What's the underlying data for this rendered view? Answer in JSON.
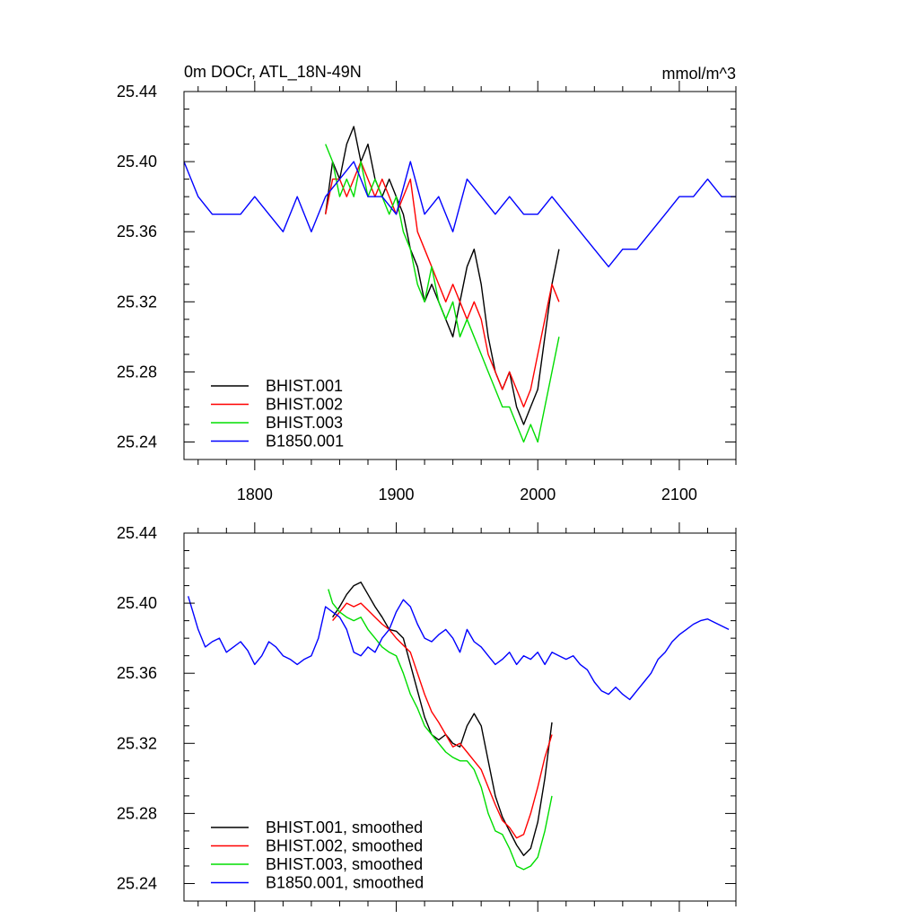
{
  "chart_data": [
    {
      "type": "line",
      "title": "0m DOCr, ATL_18N-49N",
      "units": "mmol/m^3",
      "xlim": [
        1750,
        2140
      ],
      "ylim": [
        25.23,
        25.44
      ],
      "x_ticks": [
        1800,
        1900,
        2000,
        2100
      ],
      "y_ticks": [
        "25.24",
        "25.28",
        "25.32",
        "25.36",
        "25.40",
        "25.44"
      ],
      "legend_position": "bottom-left",
      "grid": false,
      "series": [
        {
          "name": "BHIST.001",
          "color": "#000000",
          "x": [
            1850,
            1855,
            1860,
            1865,
            1870,
            1875,
            1880,
            1885,
            1890,
            1895,
            1900,
            1905,
            1910,
            1915,
            1920,
            1925,
            1930,
            1935,
            1940,
            1945,
            1950,
            1955,
            1960,
            1965,
            1970,
            1975,
            1980,
            1985,
            1990,
            1995,
            2000,
            2005,
            2010,
            2015
          ],
          "y": [
            25.37,
            25.4,
            25.39,
            25.41,
            25.42,
            25.4,
            25.41,
            25.39,
            25.38,
            25.39,
            25.38,
            25.37,
            25.35,
            25.34,
            25.32,
            25.33,
            25.32,
            25.31,
            25.3,
            25.32,
            25.34,
            25.35,
            25.33,
            25.3,
            25.28,
            25.27,
            25.28,
            25.26,
            25.25,
            25.26,
            25.27,
            25.3,
            25.33,
            25.35
          ]
        },
        {
          "name": "BHIST.002",
          "color": "#ff0000",
          "x": [
            1850,
            1855,
            1860,
            1865,
            1870,
            1875,
            1880,
            1885,
            1890,
            1895,
            1900,
            1905,
            1910,
            1915,
            1920,
            1925,
            1930,
            1935,
            1940,
            1945,
            1950,
            1955,
            1960,
            1965,
            1970,
            1975,
            1980,
            1985,
            1990,
            1995,
            2000,
            2005,
            2010,
            2015
          ],
          "y": [
            25.37,
            25.39,
            25.39,
            25.38,
            25.39,
            25.4,
            25.39,
            25.38,
            25.39,
            25.38,
            25.37,
            25.38,
            25.39,
            25.36,
            25.35,
            25.34,
            25.33,
            25.32,
            25.33,
            25.32,
            25.31,
            25.32,
            25.31,
            25.29,
            25.28,
            25.27,
            25.28,
            25.27,
            25.26,
            25.27,
            25.29,
            25.31,
            25.33,
            25.32
          ]
        },
        {
          "name": "BHIST.003",
          "color": "#00dd00",
          "x": [
            1850,
            1855,
            1860,
            1865,
            1870,
            1875,
            1880,
            1885,
            1890,
            1895,
            1900,
            1905,
            1910,
            1915,
            1920,
            1925,
            1930,
            1935,
            1940,
            1945,
            1950,
            1955,
            1960,
            1965,
            1970,
            1975,
            1980,
            1985,
            1990,
            1995,
            2000,
            2005,
            2010,
            2015
          ],
          "y": [
            25.41,
            25.4,
            25.38,
            25.39,
            25.38,
            25.4,
            25.38,
            25.39,
            25.38,
            25.37,
            25.38,
            25.36,
            25.35,
            25.33,
            25.32,
            25.34,
            25.32,
            25.31,
            25.32,
            25.3,
            25.31,
            25.3,
            25.29,
            25.28,
            25.27,
            25.26,
            25.26,
            25.25,
            25.24,
            25.25,
            25.24,
            25.26,
            25.28,
            25.3
          ]
        },
        {
          "name": "B1850.001",
          "color": "#0000ff",
          "x": [
            1750,
            1760,
            1770,
            1780,
            1790,
            1800,
            1810,
            1820,
            1830,
            1840,
            1850,
            1860,
            1870,
            1880,
            1890,
            1900,
            1910,
            1920,
            1930,
            1940,
            1950,
            1960,
            1970,
            1980,
            1990,
            2000,
            2010,
            2020,
            2030,
            2040,
            2050,
            2060,
            2070,
            2080,
            2090,
            2100,
            2110,
            2120,
            2130,
            2140
          ],
          "y": [
            25.4,
            25.38,
            25.37,
            25.37,
            25.37,
            25.38,
            25.37,
            25.36,
            25.38,
            25.36,
            25.38,
            25.39,
            25.4,
            25.38,
            25.38,
            25.37,
            25.4,
            25.37,
            25.38,
            25.36,
            25.39,
            25.38,
            25.37,
            25.38,
            25.37,
            25.37,
            25.38,
            25.37,
            25.36,
            25.35,
            25.34,
            25.35,
            25.35,
            25.36,
            25.37,
            25.38,
            25.38,
            25.39,
            25.38,
            25.38
          ]
        }
      ]
    },
    {
      "type": "line",
      "xlim": [
        1750,
        2140
      ],
      "ylim": [
        25.23,
        25.44
      ],
      "y_ticks": [
        "25.24",
        "25.28",
        "25.32",
        "25.36",
        "25.40",
        "25.44"
      ],
      "legend_position": "bottom-left",
      "grid": false,
      "series": [
        {
          "name": "BHIST.001, smoothed",
          "color": "#000000",
          "x": [
            1855,
            1860,
            1865,
            1870,
            1875,
            1880,
            1885,
            1890,
            1895,
            1900,
            1905,
            1910,
            1915,
            1920,
            1925,
            1930,
            1935,
            1940,
            1945,
            1950,
            1955,
            1960,
            1965,
            1970,
            1975,
            1980,
            1985,
            1990,
            1995,
            2000,
            2005,
            2010
          ],
          "y": [
            25.392,
            25.398,
            25.405,
            25.41,
            25.412,
            25.405,
            25.398,
            25.392,
            25.385,
            25.384,
            25.38,
            25.365,
            25.35,
            25.335,
            25.325,
            25.322,
            25.325,
            25.32,
            25.318,
            25.33,
            25.337,
            25.33,
            25.31,
            25.29,
            25.278,
            25.27,
            25.262,
            25.256,
            25.26,
            25.275,
            25.3,
            25.332
          ]
        },
        {
          "name": "BHIST.002, smoothed",
          "color": "#ff0000",
          "x": [
            1855,
            1860,
            1865,
            1870,
            1875,
            1880,
            1885,
            1890,
            1895,
            1900,
            1905,
            1910,
            1915,
            1920,
            1925,
            1930,
            1935,
            1940,
            1945,
            1950,
            1955,
            1960,
            1965,
            1970,
            1975,
            1980,
            1985,
            1990,
            1995,
            2000,
            2005,
            2010
          ],
          "y": [
            25.39,
            25.395,
            25.4,
            25.398,
            25.4,
            25.396,
            25.392,
            25.388,
            25.385,
            25.38,
            25.376,
            25.372,
            25.36,
            25.348,
            25.338,
            25.332,
            25.325,
            25.318,
            25.32,
            25.315,
            25.31,
            25.305,
            25.295,
            25.285,
            25.276,
            25.272,
            25.266,
            25.268,
            25.28,
            25.295,
            25.312,
            25.325
          ]
        },
        {
          "name": "BHIST.003, smoothed",
          "color": "#00dd00",
          "x": [
            1852,
            1855,
            1860,
            1865,
            1870,
            1875,
            1880,
            1885,
            1890,
            1895,
            1900,
            1905,
            1910,
            1915,
            1920,
            1925,
            1930,
            1935,
            1940,
            1945,
            1950,
            1955,
            1960,
            1965,
            1970,
            1975,
            1980,
            1985,
            1990,
            1995,
            2000,
            2005,
            2010
          ],
          "y": [
            25.408,
            25.4,
            25.395,
            25.392,
            25.39,
            25.392,
            25.385,
            25.38,
            25.375,
            25.372,
            25.37,
            25.36,
            25.348,
            25.34,
            25.33,
            25.325,
            25.32,
            25.315,
            25.312,
            25.31,
            25.31,
            25.305,
            25.295,
            25.28,
            25.27,
            25.268,
            25.26,
            25.25,
            25.248,
            25.25,
            25.255,
            25.27,
            25.29
          ]
        },
        {
          "name": "B1850.001, smoothed",
          "color": "#0000ff",
          "x": [
            1753,
            1760,
            1765,
            1770,
            1775,
            1780,
            1785,
            1790,
            1795,
            1800,
            1805,
            1810,
            1815,
            1820,
            1825,
            1830,
            1835,
            1840,
            1845,
            1850,
            1855,
            1860,
            1865,
            1870,
            1875,
            1880,
            1885,
            1890,
            1895,
            1900,
            1905,
            1910,
            1915,
            1920,
            1925,
            1930,
            1935,
            1940,
            1945,
            1950,
            1955,
            1960,
            1965,
            1970,
            1975,
            1980,
            1985,
            1990,
            1995,
            2000,
            2005,
            2010,
            2015,
            2020,
            2025,
            2030,
            2035,
            2040,
            2045,
            2050,
            2055,
            2060,
            2065,
            2070,
            2075,
            2080,
            2085,
            2090,
            2095,
            2100,
            2105,
            2110,
            2115,
            2120,
            2125,
            2130,
            2135
          ],
          "y": [
            25.404,
            25.385,
            25.375,
            25.378,
            25.38,
            25.372,
            25.375,
            25.378,
            25.373,
            25.365,
            25.37,
            25.378,
            25.375,
            25.37,
            25.368,
            25.365,
            25.368,
            25.37,
            25.38,
            25.398,
            25.395,
            25.392,
            25.385,
            25.372,
            25.37,
            25.375,
            25.372,
            25.38,
            25.385,
            25.395,
            25.402,
            25.398,
            25.388,
            25.38,
            25.378,
            25.382,
            25.385,
            25.38,
            25.372,
            25.385,
            25.378,
            25.375,
            25.37,
            25.365,
            25.368,
            25.372,
            25.365,
            25.37,
            25.368,
            25.372,
            25.365,
            25.372,
            25.37,
            25.368,
            25.37,
            25.365,
            25.362,
            25.355,
            25.35,
            25.348,
            25.352,
            25.348,
            25.345,
            25.35,
            25.355,
            25.36,
            25.368,
            25.372,
            25.378,
            25.382,
            25.385,
            25.388,
            25.39,
            25.391,
            25.389,
            25.387,
            25.385
          ]
        }
      ]
    }
  ]
}
